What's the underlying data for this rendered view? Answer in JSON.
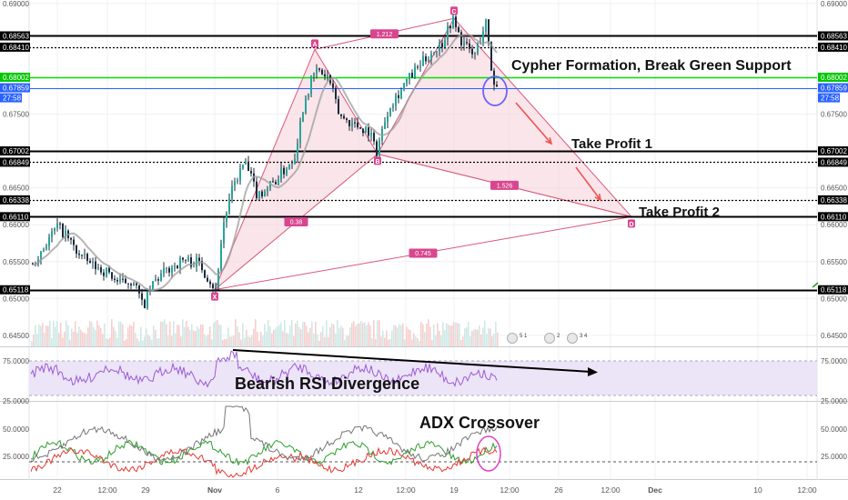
{
  "chart_data": {
    "type": "candlestick",
    "symbol_pane": {
      "y_ticks": [
        "0.69000",
        "0.67500",
        "0.66500",
        "0.66000",
        "0.65500",
        "0.65000",
        "0.64500"
      ],
      "y_tick_values": [
        0.69,
        0.675,
        0.665,
        0.66,
        0.655,
        0.65,
        0.645
      ],
      "ylim": [
        0.6435,
        0.6905
      ],
      "levels": [
        {
          "label": "0.68563",
          "value": 0.68563,
          "style": "solid",
          "color": "#000000",
          "badge": "#000000"
        },
        {
          "label": "0.68410",
          "value": 0.6841,
          "style": "dotted",
          "color": "#000000",
          "badge": "#000000"
        },
        {
          "label": "0.68002",
          "value": 0.68002,
          "style": "solid",
          "color": "#00e000",
          "badge": "#00c800"
        },
        {
          "label": "0.67859",
          "value": 0.67859,
          "style": "thin",
          "color": "#2962ff",
          "badge": "#2962ff"
        },
        {
          "label": "0.67002",
          "value": 0.67002,
          "style": "solid",
          "color": "#000000",
          "badge": "#000000"
        },
        {
          "label": "0.66849",
          "value": 0.66849,
          "style": "dotted",
          "color": "#000000",
          "badge": "#000000"
        },
        {
          "label": "0.66338",
          "value": 0.66338,
          "style": "dotted",
          "color": "#000000",
          "badge": "#000000"
        },
        {
          "label": "0.66110",
          "value": 0.6611,
          "style": "solid",
          "color": "#000000",
          "badge": "#000000"
        },
        {
          "label": "0.65118",
          "value": 0.65118,
          "style": "solid",
          "color": "#000000",
          "badge": "#000000"
        }
      ],
      "countdown_label": "27:58",
      "cypher_points": [
        {
          "label": "X",
          "value": 0.6512
        },
        {
          "label": "A",
          "value": 0.6838
        },
        {
          "label": "B",
          "value": 0.6696
        },
        {
          "label": "C",
          "value": 0.688
        },
        {
          "label": "D",
          "value": 0.6611
        }
      ],
      "ratios": [
        "1.212",
        "0.38",
        "1.526",
        "0.745"
      ],
      "annotations": [
        "Cypher Formation, Break Green Support",
        "Take Profit 1",
        "Take Profit 2"
      ],
      "event_badges": [
        "5 1",
        "2",
        "3 4"
      ]
    },
    "rsi_pane": {
      "y_ticks": [
        "75.0000",
        "25.0000"
      ],
      "annotation": "Bearish RSI Divergence"
    },
    "adx_pane": {
      "y_ticks": [
        "50.0000",
        "25.0000"
      ],
      "annotation": "ADX Crossover"
    },
    "x_ticks": [
      "22",
      "12:00",
      "29",
      "Nov",
      "6",
      "12",
      "12:00",
      "19",
      "12:00",
      "26",
      "12:00",
      "Dec",
      "10",
      "12:00"
    ],
    "colors": {
      "up": "#26a69a",
      "down": "#ef5350",
      "candle": "#1b2a3a",
      "pattern_fill": "#f5cfd8",
      "pattern_line": "#d9587a",
      "rsi_band": "#ece4f7",
      "rsi_line": "#9c5bd6",
      "adx_green": "#2e9e2e",
      "adx_red": "#e53935",
      "adx_gray": "#777777"
    }
  }
}
